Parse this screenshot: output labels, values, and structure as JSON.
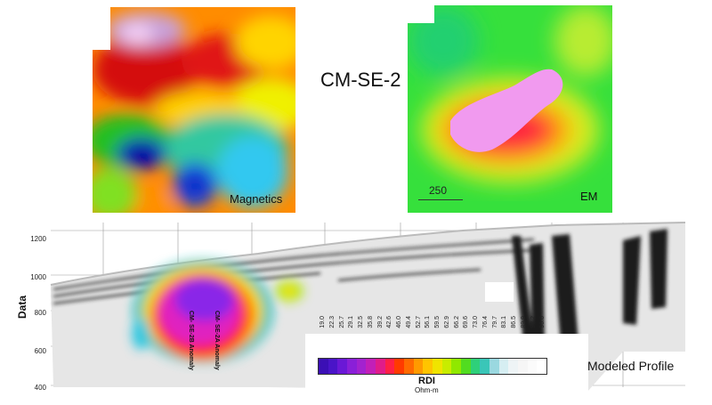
{
  "title": "CM-SE-2",
  "panels": {
    "magnetics_label": "Magnetics",
    "em_label": "EM",
    "em_scale": "250"
  },
  "profile": {
    "y_axis_label": "Data",
    "y_ticks": [
      "1200",
      "1000",
      "800",
      "600",
      "400"
    ],
    "anomaly_labels": [
      "CM- SE-2B Anomaly",
      "CM- SE-2A Anomaly"
    ],
    "modeled_label": "Modeled Profile"
  },
  "legend": {
    "title": "RDI",
    "unit": "Ohm-m",
    "ticks": [
      "19.0",
      "22.3",
      "25.7",
      "29.1",
      "32.5",
      "35.8",
      "39.2",
      "42.6",
      "46.0",
      "49.4",
      "52.7",
      "56.1",
      "59.5",
      "62.9",
      "66.2",
      "69.6",
      "73.0",
      "76.4",
      "79.7",
      "83.1",
      "86.5",
      "89.9",
      "93.2",
      "96.6"
    ],
    "colors": [
      "#3b0fb5",
      "#4a14c8",
      "#6a18d6",
      "#8a1fd8",
      "#a322cf",
      "#c21fb8",
      "#e01c8a",
      "#ff2046",
      "#ff3a00",
      "#ff6a00",
      "#ff9a00",
      "#ffc400",
      "#f0e400",
      "#c8ec00",
      "#90e800",
      "#52dc20",
      "#2ed07a",
      "#3ac6b8",
      "#9ad8e0",
      "#d6eef2",
      "#eef4f6",
      "#f6f6f6",
      "#fbfbfb",
      "#ffffff"
    ]
  }
}
